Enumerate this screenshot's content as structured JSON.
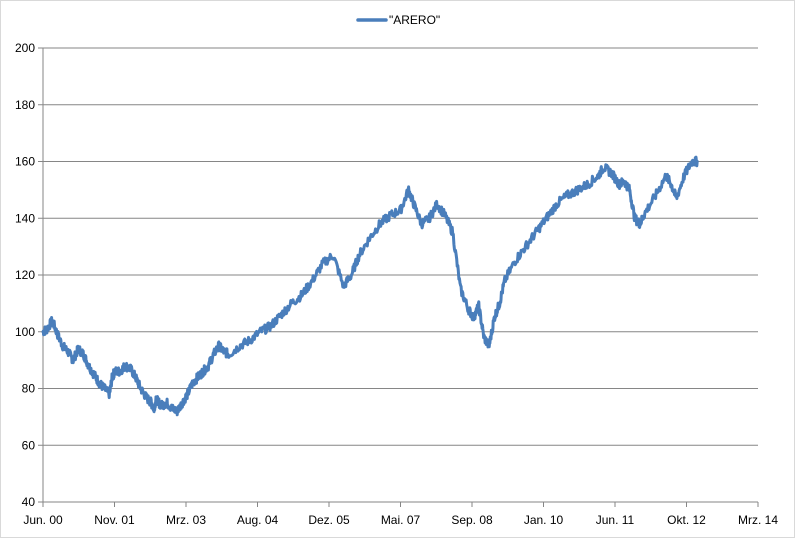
{
  "chart_data": {
    "type": "line",
    "title": "",
    "xlabel": "",
    "ylabel": "",
    "ylim": [
      40,
      200
    ],
    "y_ticks": [
      40,
      60,
      80,
      100,
      120,
      140,
      160,
      180,
      200
    ],
    "x_tick_labels": [
      "Jun. 00",
      "Nov. 01",
      "Mrz. 03",
      "Aug. 04",
      "Dez. 05",
      "Mai. 07",
      "Sep. 08",
      "Jan. 10",
      "Jun. 11",
      "Okt. 12",
      "Mrz. 14"
    ],
    "x_range_years": [
      2000.42,
      2014.17
    ],
    "grid": "horizontal",
    "legend_position": "top-center",
    "series": [
      {
        "name": "\"ARERO\"",
        "color": "#4a7ebb",
        "x_years": [
          2000.42,
          2000.5,
          2000.6,
          2000.7,
          2000.8,
          2000.9,
          2001.0,
          2001.1,
          2001.2,
          2001.3,
          2001.4,
          2001.5,
          2001.6,
          2001.7,
          2001.75,
          2001.8,
          2001.9,
          2002.0,
          2002.1,
          2002.2,
          2002.3,
          2002.4,
          2002.5,
          2002.55,
          2002.6,
          2002.7,
          2002.8,
          2002.9,
          2003.0,
          2003.1,
          2003.2,
          2003.3,
          2003.4,
          2003.5,
          2003.6,
          2003.7,
          2003.8,
          2003.9,
          2004.0,
          2004.2,
          2004.4,
          2004.6,
          2004.8,
          2005.0,
          2005.2,
          2005.4,
          2005.6,
          2005.8,
          2006.0,
          2006.2,
          2006.35,
          2006.5,
          2006.7,
          2006.9,
          2007.1,
          2007.3,
          2007.45,
          2007.55,
          2007.7,
          2007.85,
          2008.0,
          2008.15,
          2008.3,
          2008.45,
          2008.6,
          2008.7,
          2008.8,
          2008.9,
          2009.0,
          2009.1,
          2009.2,
          2009.3,
          2009.5,
          2009.7,
          2009.9,
          2010.1,
          2010.3,
          2010.5,
          2010.7,
          2010.9,
          2011.1,
          2011.2,
          2011.35,
          2011.5,
          2011.6,
          2011.7,
          2011.8,
          2011.9,
          2012.0,
          2012.2,
          2012.4,
          2012.5,
          2012.6,
          2012.75,
          2012.9,
          2013.0
        ],
        "values": [
          100,
          101,
          104,
          99,
          95,
          93,
          90,
          94,
          92,
          88,
          85,
          82,
          80,
          78,
          84,
          86,
          86,
          88,
          87,
          84,
          80,
          77,
          75,
          73,
          76,
          74,
          75,
          73,
          72,
          75,
          78,
          82,
          84,
          86,
          88,
          92,
          95,
          93,
          92,
          95,
          97,
          100,
          102,
          106,
          110,
          113,
          118,
          124,
          127,
          116,
          120,
          127,
          133,
          138,
          141,
          143,
          150,
          145,
          138,
          140,
          145,
          141,
          135,
          115,
          108,
          105,
          109,
          98,
          95,
          105,
          110,
          118,
          125,
          130,
          135,
          140,
          145,
          148,
          150,
          152,
          155,
          158,
          156,
          152,
          153,
          150,
          140,
          138,
          142,
          148,
          155,
          152,
          147,
          155,
          160,
          160
        ]
      }
    ]
  }
}
